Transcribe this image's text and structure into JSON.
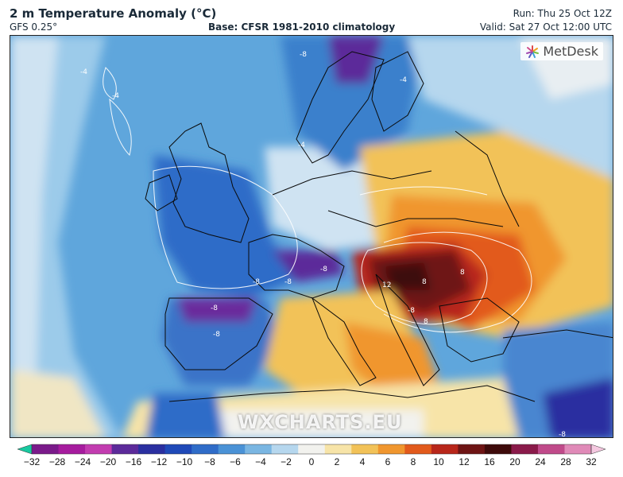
{
  "header": {
    "title": "2 m Temperature Anomaly (°C)",
    "model": "GFS 0.25°",
    "base": "Base: CFSR 1981-2010 climatology",
    "run": "Run: Thu 25 Oct 12Z",
    "valid": "Valid: Sat 27 Oct 12:00 UTC"
  },
  "map": {
    "region": "Europe",
    "variable": "2 m temperature anomaly",
    "units": "°C",
    "contour_labels": [
      "-4",
      "-4",
      "-8",
      "-4",
      "-4",
      "-8",
      "-8",
      "-8",
      "-8",
      "-8",
      "-8",
      "12",
      "8",
      "8",
      "8",
      "-8"
    ],
    "logo": "MetDesk",
    "watermark": "WXCHARTS.EU"
  },
  "colorbar": {
    "ticks": [
      "−32",
      "−28",
      "−24",
      "−20",
      "−16",
      "−12",
      "−10",
      "−8",
      "−6",
      "−4",
      "−2",
      "0",
      "2",
      "4",
      "6",
      "8",
      "10",
      "12",
      "16",
      "20",
      "24",
      "28",
      "32"
    ],
    "colors": [
      "#19c9a0",
      "#7a1a8a",
      "#a61c9e",
      "#c23cb0",
      "#5c2a9a",
      "#2a2fa0",
      "#1f49b8",
      "#2f6cc8",
      "#4a92d6",
      "#7ab6e2",
      "#b6d7ee",
      "#f2f2ee",
      "#f7e4a8",
      "#f2c258",
      "#f0962e",
      "#e25a1c",
      "#b8261a",
      "#6e1414",
      "#3e0a0a",
      "#8a1a4a",
      "#c04a8a",
      "#e08ab8",
      "#f4c8e0"
    ]
  }
}
